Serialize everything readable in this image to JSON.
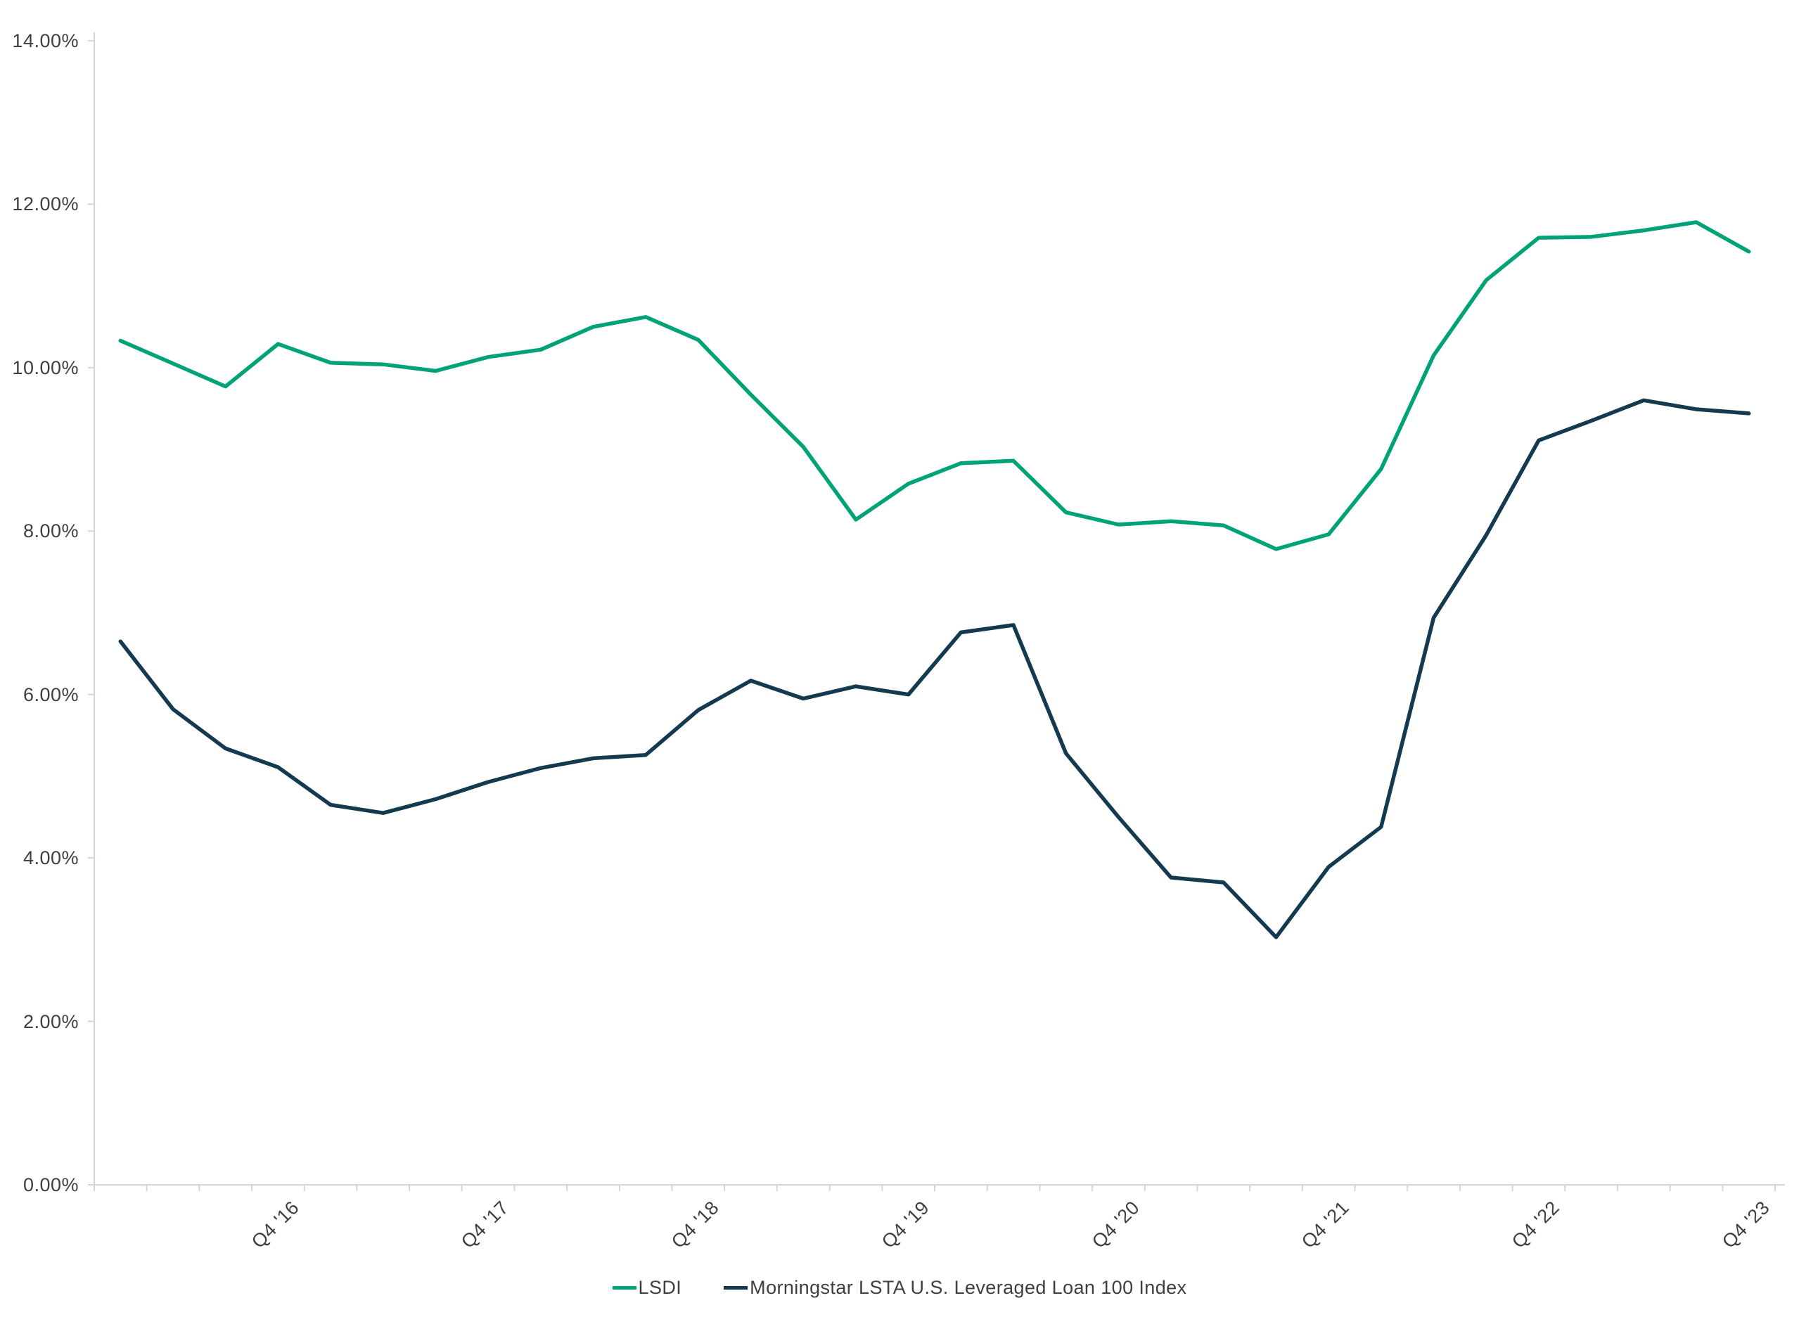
{
  "chart_data": {
    "type": "line",
    "title": "",
    "categories": [
      "Q1 '16",
      "Q2 '16",
      "Q3 '16",
      "Q4 '16",
      "Q1 '17",
      "Q2 '17",
      "Q3 '17",
      "Q4 '17",
      "Q1 '18",
      "Q2 '18",
      "Q3 '18",
      "Q4 '18",
      "Q1 '19",
      "Q2 '19",
      "Q3 '19",
      "Q4 '19",
      "Q1 '20",
      "Q2 '20",
      "Q3 '20",
      "Q4 '20",
      "Q1 '21",
      "Q2 '21",
      "Q3 '21",
      "Q4 '21",
      "Q1 '22",
      "Q2 '22",
      "Q3 '22",
      "Q4 '22",
      "Q1 '23",
      "Q2 '23",
      "Q3 '23",
      "Q4 '23"
    ],
    "series": [
      {
        "name": "LSDI",
        "color": "#00A377",
        "values": [
          10.33,
          10.05,
          9.77,
          10.29,
          10.06,
          10.04,
          9.96,
          10.13,
          10.22,
          10.5,
          10.62,
          10.34,
          9.67,
          9.03,
          8.14,
          8.58,
          8.83,
          8.86,
          8.23,
          8.08,
          8.12,
          8.07,
          7.78,
          7.96,
          8.76,
          10.15,
          11.07,
          11.59,
          11.6,
          11.68,
          11.78,
          11.42
        ]
      },
      {
        "name": "Morningstar LSTA U.S. Leveraged Loan 100 Index",
        "color": "#143A4F",
        "values": [
          6.65,
          5.82,
          5.34,
          5.11,
          4.65,
          4.55,
          4.72,
          4.93,
          5.1,
          5.22,
          5.26,
          5.81,
          6.17,
          5.95,
          6.1,
          6.0,
          6.76,
          6.85,
          5.28,
          4.5,
          3.76,
          3.7,
          3.03,
          3.89,
          4.38,
          6.94,
          7.95,
          9.11,
          9.35,
          9.6,
          9.49,
          9.44
        ]
      }
    ],
    "y_axis": {
      "min": 0,
      "max": 14,
      "step": 2,
      "tick_labels": [
        "0.00%",
        "2.00%",
        "4.00%",
        "6.00%",
        "8.00%",
        "10.00%",
        "12.00%",
        "14.00%"
      ],
      "grid": false
    },
    "x_axis": {
      "tick_labels": [
        "Q4 '16",
        "Q4 '17",
        "Q4 '18",
        "Q4 '19",
        "Q4 '20",
        "Q4 '21",
        "Q4 '22",
        "Q4 '23"
      ],
      "labeled_category_indices": [
        3,
        7,
        11,
        15,
        19,
        23,
        27,
        31
      ],
      "rotation_deg": 45
    },
    "legend_position": "bottom-center"
  },
  "colors": {
    "axis": "#D9D5D0",
    "text": "#3F3F3F",
    "background": "#FFFFFF"
  }
}
